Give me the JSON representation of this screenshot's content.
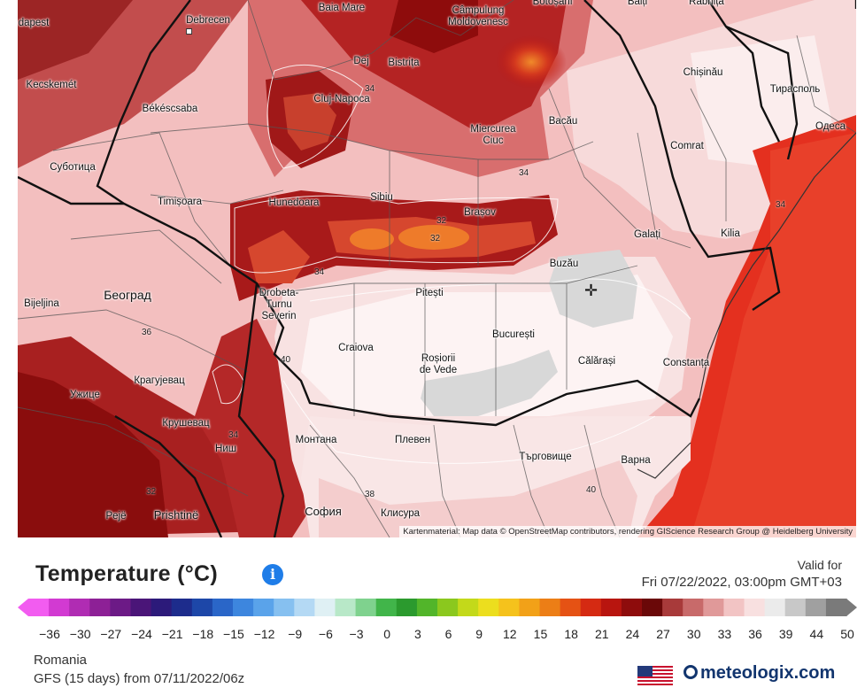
{
  "map": {
    "places": [
      {
        "name": "dapest",
        "id": "budapest"
      },
      {
        "name": "Debrecen",
        "id": "debrecen"
      },
      {
        "name": "Baia Mare",
        "id": "baia-mare"
      },
      {
        "name": "Câmpulung\nMoldovenesc",
        "id": "campulung"
      },
      {
        "name": "Botoșani",
        "id": "botosani"
      },
      {
        "name": "Bălți",
        "id": "balti"
      },
      {
        "name": "Râbnița",
        "id": "ribnita"
      },
      {
        "name": "Kecskemét",
        "id": "kecskemet"
      },
      {
        "name": "Dej",
        "id": "dej"
      },
      {
        "name": "Bistrița",
        "id": "bistrita"
      },
      {
        "name": "Chișinău",
        "id": "chisinau"
      },
      {
        "name": "Тирасполь",
        "id": "tiraspol"
      },
      {
        "name": "Békéscsaba",
        "id": "bekescsaba"
      },
      {
        "name": "Cluj-Napoca",
        "id": "cluj"
      },
      {
        "name": "Miercurea\nCiuc",
        "id": "miercurea-ciuc"
      },
      {
        "name": "Bacău",
        "id": "bacau"
      },
      {
        "name": "Одеса",
        "id": "odesa"
      },
      {
        "name": "Суботица",
        "id": "subotica"
      },
      {
        "name": "Comrat",
        "id": "comrat"
      },
      {
        "name": "Sibiu",
        "id": "sibiu"
      },
      {
        "name": "Timișoara",
        "id": "timisoara"
      },
      {
        "name": "Hunedoara",
        "id": "hunedoara"
      },
      {
        "name": "Brașov",
        "id": "brasov"
      },
      {
        "name": "Galați",
        "id": "galati"
      },
      {
        "name": "Kilia",
        "id": "kilia"
      },
      {
        "name": "Buzău",
        "id": "buzau"
      },
      {
        "name": "Београд",
        "id": "beograd"
      },
      {
        "name": "Drobeta-\nTurnu\nSeverin",
        "id": "drobeta"
      },
      {
        "name": "Pitești",
        "id": "pitesti"
      },
      {
        "name": "Bijeljina",
        "id": "bijeljina"
      },
      {
        "name": "București",
        "id": "bucuresti"
      },
      {
        "name": "Craiova",
        "id": "craiova"
      },
      {
        "name": "Roșiorii\nde Vede",
        "id": "rosiorii"
      },
      {
        "name": "Călărași",
        "id": "calarasi"
      },
      {
        "name": "Constanța",
        "id": "constanta"
      },
      {
        "name": "Крагујевац",
        "id": "kragujevac"
      },
      {
        "name": "Ужице",
        "id": "uzice"
      },
      {
        "name": "Крушевац",
        "id": "krusevac"
      },
      {
        "name": "Монтана",
        "id": "montana"
      },
      {
        "name": "Плевен",
        "id": "pleven"
      },
      {
        "name": "Търговище",
        "id": "targovishte"
      },
      {
        "name": "Ниш",
        "id": "nis"
      },
      {
        "name": "Варна",
        "id": "varna"
      },
      {
        "name": "Pejë",
        "id": "peje"
      },
      {
        "name": "Prishtinë",
        "id": "prishtine"
      },
      {
        "name": "София",
        "id": "sofia"
      },
      {
        "name": "Клисура",
        "id": "klisura"
      }
    ],
    "isotherm_labels": [
      "34",
      "32",
      "34",
      "32",
      "34",
      "36",
      "40",
      "34",
      "38",
      "40",
      "32",
      "34"
    ],
    "attribution": "Kartenmaterial: Map data © OpenStreetMap contributors, rendering GIScience Research Group @ Heidelberg University"
  },
  "legend": {
    "title": "Temperature (°C)",
    "info_icon": "info-icon",
    "valid_for_label": "Valid for",
    "valid_datetime": "Fri 07/22/2022, 03:00pm GMT+03",
    "scale_min": -36,
    "scale_max": 50,
    "tick_labels": [
      "−36",
      "−30",
      "−27",
      "−24",
      "−21",
      "−18",
      "−15",
      "−12",
      "−9",
      "−6",
      "−3",
      "0",
      "3",
      "6",
      "9",
      "12",
      "15",
      "18",
      "21",
      "24",
      "27",
      "30",
      "33",
      "36",
      "39",
      "44",
      "50"
    ],
    "colors": [
      "#f25cf0",
      "#d23ad2",
      "#b02cb3",
      "#8d2096",
      "#6c1a86",
      "#4a1578",
      "#2c1a7a",
      "#1d2c8c",
      "#1d47a8",
      "#2a66c8",
      "#3d86de",
      "#5aa3ea",
      "#86c0f0",
      "#b4d9f4",
      "#dff0f4",
      "#b8e8c8",
      "#7fd28e",
      "#41b54a",
      "#2b9a2e",
      "#52b52a",
      "#8bc81e",
      "#c3d91a",
      "#ecde1e",
      "#f5c21c",
      "#f2a118",
      "#ec7e16",
      "#e55214",
      "#d52a12",
      "#b8150f",
      "#8e0c0c",
      "#6a0808",
      "#a83a3a",
      "#c86a6a",
      "#e09999",
      "#f2c4c4",
      "#f8e0e0",
      "#ebebeb",
      "#c8c8c8",
      "#a0a0a0",
      "#7a7a7a"
    ]
  },
  "footer": {
    "region": "Romania",
    "model": "GFS (15 days) from 07/11/2022/06z",
    "brand": "meteologix.com",
    "flag_icon": "us-flag-icon"
  }
}
